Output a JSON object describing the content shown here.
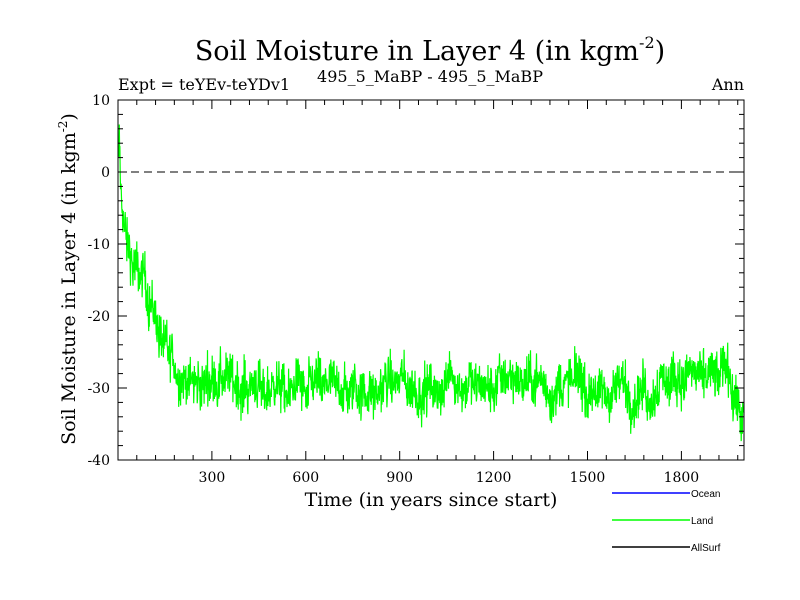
{
  "chart_data": {
    "type": "line",
    "title": "Soil Moisture in Layer 4 (in kgm",
    "title_sup": "-2",
    "title_close": ")",
    "subtitle_left": "Expt = teYEv-teYDv1",
    "subtitle_center": "495_5_MaBP - 495_5_MaBP",
    "subtitle_right": "Ann",
    "xlabel": "Time (in years since start)",
    "ylabel": "Soil Moisture in Layer 4 (in kgm",
    "ylabel_sup": "-2",
    "ylabel_close": ")",
    "xlim": [
      0,
      2000
    ],
    "ylim": [
      -40,
      10
    ],
    "xticks": [
      300,
      600,
      900,
      1200,
      1500,
      1800
    ],
    "xtick_labels": [
      "300",
      "600",
      "900",
      "1200",
      "1500",
      "1800"
    ],
    "yticks": [
      -40,
      -30,
      -20,
      -10,
      0,
      10
    ],
    "ytick_labels": [
      "-40",
      "-30",
      "-20",
      "-10",
      "0",
      "10"
    ],
    "reference_line": 0,
    "series": [
      {
        "name": "Land",
        "color": "#00ff00",
        "anchors": [
          [
            0,
            2
          ],
          [
            5,
            3
          ],
          [
            10,
            -3
          ],
          [
            20,
            -8
          ],
          [
            40,
            -11
          ],
          [
            60,
            -13
          ],
          [
            80,
            -15
          ],
          [
            100,
            -18
          ],
          [
            120,
            -21
          ],
          [
            140,
            -24
          ],
          [
            160,
            -26
          ],
          [
            200,
            -28
          ],
          [
            250,
            -29
          ],
          [
            300,
            -29.5
          ],
          [
            400,
            -30
          ],
          [
            500,
            -30
          ],
          [
            600,
            -30
          ],
          [
            700,
            -30
          ],
          [
            800,
            -29.5
          ],
          [
            900,
            -29.5
          ],
          [
            1000,
            -30
          ],
          [
            1100,
            -29.5
          ],
          [
            1200,
            -29.5
          ],
          [
            1300,
            -29
          ],
          [
            1400,
            -29.5
          ],
          [
            1500,
            -30
          ],
          [
            1600,
            -30
          ],
          [
            1700,
            -30
          ],
          [
            1800,
            -29
          ],
          [
            1850,
            -28.5
          ],
          [
            1900,
            -28
          ],
          [
            1950,
            -29
          ],
          [
            1980,
            -32
          ],
          [
            2000,
            -34
          ]
        ],
        "noise_amplitude": 3.2
      }
    ],
    "legend": [
      {
        "name": "Ocean",
        "color": "#0000ff"
      },
      {
        "name": "Land",
        "color": "#00ff00"
      },
      {
        "name": "AllSurf",
        "color": "#000000"
      }
    ],
    "legend_position": "bottom-right"
  }
}
